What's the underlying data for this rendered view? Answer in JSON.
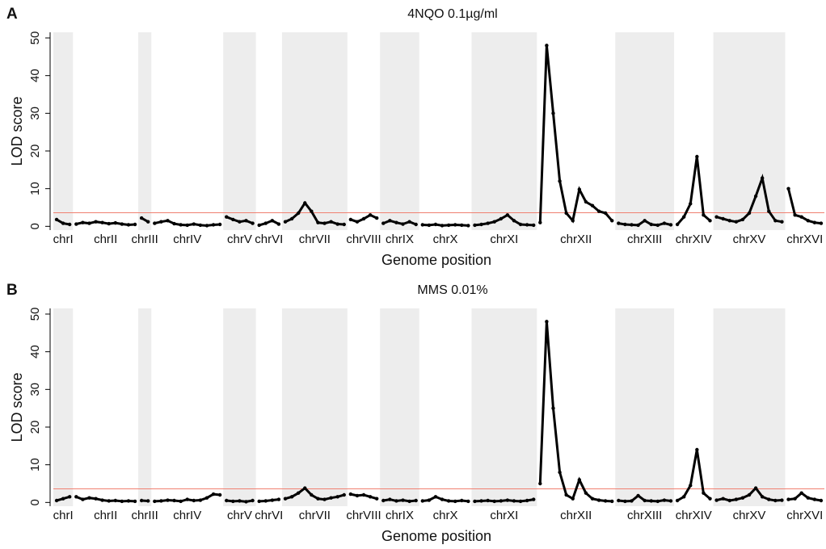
{
  "chart_data": [
    {
      "type": "scatter",
      "panel": "A",
      "title": "4NQO 0.1µg/ml",
      "xlabel": "Genome position",
      "ylabel": "LOD score",
      "categories": [
        "chrI",
        "chrII",
        "chrIII",
        "chrIV",
        "chrV",
        "chrVI",
        "chrVII",
        "chrVIII",
        "chrIX",
        "chrX",
        "chrXI",
        "chrXII",
        "chrXIII",
        "chrXIV",
        "chrXV",
        "chrXVI"
      ],
      "values": [
        [
          1.8,
          0.8,
          0.5
        ],
        [
          0.6,
          1.0,
          0.8,
          1.2,
          1.0,
          0.7,
          0.9,
          0.6,
          0.4,
          0.5
        ],
        [
          2.2,
          1.2
        ],
        [
          0.8,
          1.2,
          1.5,
          0.7,
          0.4,
          0.3,
          0.6,
          0.3,
          0.2,
          0.4,
          0.5
        ],
        [
          2.5,
          1.8,
          1.2,
          1.5,
          0.8
        ],
        [
          0.3,
          0.8,
          1.5,
          0.6
        ],
        [
          1.2,
          2.0,
          3.5,
          6.2,
          4.0,
          1.0,
          0.8,
          1.2,
          0.6,
          0.5
        ],
        [
          1.8,
          1.2,
          2.0,
          3.0,
          2.2
        ],
        [
          0.8,
          1.5,
          1.0,
          0.6,
          1.2,
          0.5
        ],
        [
          0.4,
          0.3,
          0.5,
          0.2,
          0.3,
          0.4,
          0.3,
          0.2
        ],
        [
          0.3,
          0.5,
          0.8,
          1.2,
          2.0,
          3.0,
          1.5,
          0.5,
          0.4,
          0.3
        ],
        [
          1.0,
          48,
          30,
          12,
          3.5,
          1.5,
          9.8,
          6.5,
          5.5,
          4.0,
          3.5,
          1.5
        ],
        [
          0.8,
          0.5,
          0.4,
          0.3,
          1.5,
          0.5,
          0.3,
          0.8,
          0.4
        ],
        [
          0.5,
          2.5,
          6.0,
          18.5,
          3.0,
          1.5
        ],
        [
          2.5,
          2.0,
          1.5,
          1.2,
          1.8,
          3.5,
          8.0,
          12.8,
          4.0,
          1.5,
          1.2
        ],
        [
          10.0,
          3.0,
          2.5,
          1.5,
          1.0,
          0.8
        ]
      ],
      "ylim": [
        -1,
        51.5
      ],
      "yticks": [
        0,
        10,
        20,
        30,
        40,
        50
      ],
      "threshold": 3.6,
      "threshold_color": "#f08070",
      "color": "#000000",
      "band_color": "#ededed"
    },
    {
      "type": "scatter",
      "panel": "B",
      "title": "MMS 0.01%",
      "xlabel": "Genome position",
      "ylabel": "LOD score",
      "categories": [
        "chrI",
        "chrII",
        "chrIII",
        "chrIV",
        "chrV",
        "chrVI",
        "chrVII",
        "chrVIII",
        "chrIX",
        "chrX",
        "chrXI",
        "chrXII",
        "chrXIII",
        "chrXIV",
        "chrXV",
        "chrXVI"
      ],
      "values": [
        [
          0.5,
          1.0,
          1.5
        ],
        [
          1.5,
          0.8,
          1.2,
          1.0,
          0.6,
          0.4,
          0.5,
          0.3,
          0.4,
          0.3
        ],
        [
          0.5,
          0.4
        ],
        [
          0.3,
          0.4,
          0.6,
          0.5,
          0.3,
          0.8,
          0.5,
          0.6,
          1.2,
          2.2,
          2.0
        ],
        [
          0.5,
          0.3,
          0.4,
          0.2,
          0.5
        ],
        [
          0.3,
          0.4,
          0.6,
          0.8
        ],
        [
          1.0,
          1.5,
          2.5,
          3.8,
          2.0,
          1.0,
          0.8,
          1.2,
          1.5,
          2.0
        ],
        [
          2.2,
          1.8,
          2.0,
          1.5,
          1.0
        ],
        [
          0.5,
          0.8,
          0.4,
          0.6,
          0.3,
          0.5
        ],
        [
          0.4,
          0.6,
          1.5,
          0.8,
          0.4,
          0.3,
          0.5,
          0.3
        ],
        [
          0.3,
          0.4,
          0.5,
          0.3,
          0.4,
          0.6,
          0.4,
          0.3,
          0.5,
          0.8
        ],
        [
          5.0,
          48.0,
          25.0,
          8.0,
          2.0,
          1.0,
          6.0,
          2.5,
          1.0,
          0.6,
          0.4,
          0.3
        ],
        [
          0.5,
          0.3,
          0.4,
          1.8,
          0.5,
          0.4,
          0.3,
          0.6,
          0.4
        ],
        [
          0.5,
          1.5,
          4.5,
          14.0,
          2.5,
          1.0
        ],
        [
          0.6,
          1.0,
          0.5,
          0.8,
          1.2,
          2.0,
          3.8,
          1.5,
          0.8,
          0.5,
          0.6
        ],
        [
          0.8,
          1.0,
          2.5,
          1.2,
          0.8,
          0.5
        ]
      ],
      "ylim": [
        -1,
        51.5
      ],
      "yticks": [
        0,
        10,
        20,
        30,
        40,
        50
      ],
      "threshold": 3.6,
      "threshold_color": "#f08070",
      "color": "#000000",
      "band_color": "#ededed"
    }
  ]
}
